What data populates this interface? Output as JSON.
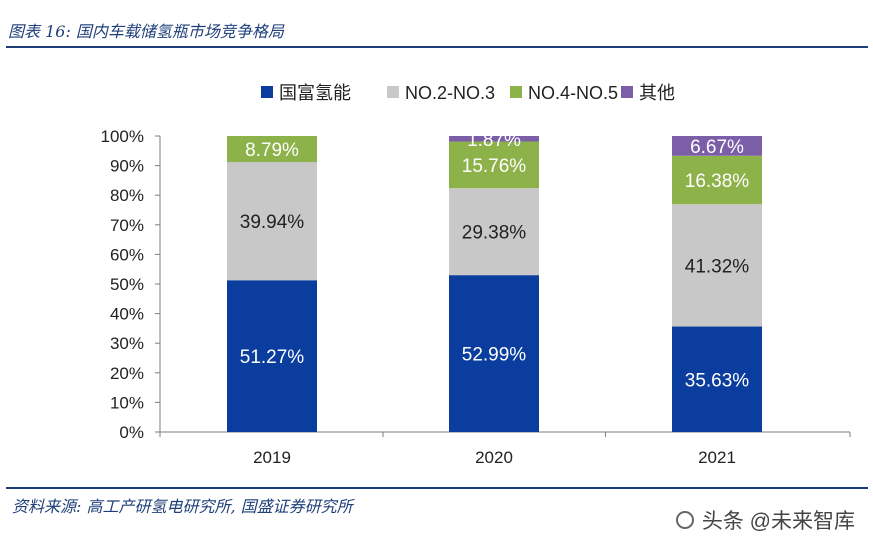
{
  "header": {
    "title": "图表 16:  国内车载储氢瓶市场竞争格局"
  },
  "footer": {
    "source": "资料来源:  高工产研氢电研究所, 国盛证券研究所",
    "watermark": "头条 @未来智库"
  },
  "chart_data": {
    "type": "bar",
    "stacked": true,
    "categories": [
      "2019",
      "2020",
      "2021"
    ],
    "series": [
      {
        "name": "国富氢能",
        "values": [
          51.27,
          52.99,
          35.63
        ],
        "labels": [
          "51.27%",
          "52.99%",
          "35.63%"
        ],
        "color": "#0a3d9e",
        "label_color": "#ffffff"
      },
      {
        "name": "NO.2-NO.3",
        "values": [
          39.94,
          29.38,
          41.32
        ],
        "labels": [
          "39.94%",
          "29.38%",
          "41.32%"
        ],
        "color": "#c8c8c8",
        "label_color": "#222222"
      },
      {
        "name": "NO.4-NO.5",
        "values": [
          8.79,
          15.76,
          16.38
        ],
        "labels": [
          "8.79%",
          "15.76%",
          "16.38%"
        ],
        "color": "#8db24a",
        "label_color": "#ffffff"
      },
      {
        "name": "其他",
        "values": [
          0,
          1.87,
          6.67
        ],
        "labels": [
          "",
          "1.87%",
          "6.67%"
        ],
        "color": "#7b5ea7",
        "label_color": "#ffffff"
      }
    ],
    "ylim": [
      0,
      100
    ],
    "yticks": [
      "0%",
      "10%",
      "20%",
      "30%",
      "40%",
      "50%",
      "60%",
      "70%",
      "80%",
      "90%",
      "100%"
    ],
    "legend_position": "top-center",
    "grid": false
  }
}
